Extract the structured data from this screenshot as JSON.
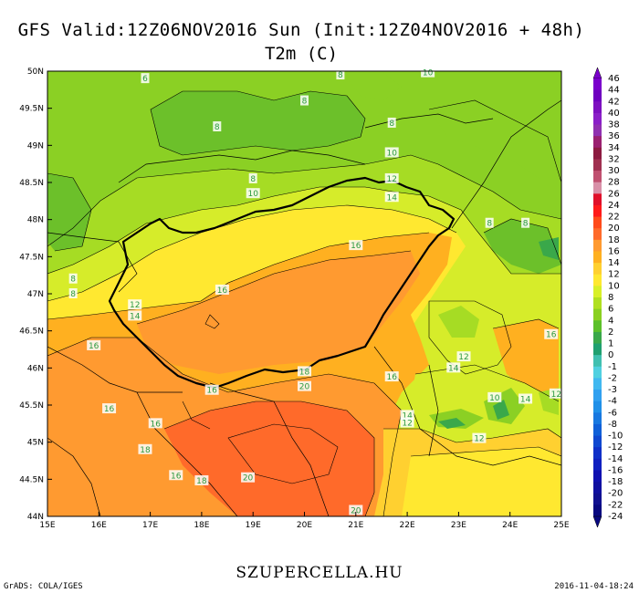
{
  "title": {
    "line1": "GFS Valid:12Z06NOV2016 Sun (Init:12Z04NOV2016 + 48h)",
    "line2": "T2m (C)"
  },
  "footer": {
    "site": "SZUPERCELLA.HU",
    "credit": "GrADS: COLA/IGES",
    "timestamp": "2016-11-04-18:24"
  },
  "map": {
    "region": "Hungary and Carpathian Basin",
    "variable": "2m temperature (C)",
    "lon_range": [
      15,
      25
    ],
    "lat_range": [
      44,
      50
    ],
    "x_ticks": [
      "15E",
      "16E",
      "17E",
      "18E",
      "19E",
      "20E",
      "21E",
      "22E",
      "23E",
      "24E",
      "25E"
    ],
    "y_ticks": [
      "44N",
      "44.5N",
      "45N",
      "45.5N",
      "46N",
      "46.5N",
      "47N",
      "47.5N",
      "48N",
      "48.5N",
      "49N",
      "49.5N",
      "50N"
    ],
    "contour_labels": [
      {
        "text": "6",
        "lon": 16.9,
        "lat": 49.9
      },
      {
        "text": "8",
        "lon": 20.7,
        "lat": 49.95
      },
      {
        "text": "10",
        "lon": 22.4,
        "lat": 49.98
      },
      {
        "text": "8",
        "lon": 20.0,
        "lat": 49.6
      },
      {
        "text": "8",
        "lon": 18.3,
        "lat": 49.25
      },
      {
        "text": "8",
        "lon": 21.7,
        "lat": 49.3
      },
      {
        "text": "10",
        "lon": 21.7,
        "lat": 48.9
      },
      {
        "text": "8",
        "lon": 19.0,
        "lat": 48.55
      },
      {
        "text": "10",
        "lon": 19.0,
        "lat": 48.35
      },
      {
        "text": "12",
        "lon": 21.7,
        "lat": 48.55
      },
      {
        "text": "14",
        "lon": 21.7,
        "lat": 48.3
      },
      {
        "text": "8",
        "lon": 23.6,
        "lat": 47.95
      },
      {
        "text": "8",
        "lon": 24.3,
        "lat": 47.95
      },
      {
        "text": "16",
        "lon": 21.0,
        "lat": 47.65
      },
      {
        "text": "8",
        "lon": 15.5,
        "lat": 47.2
      },
      {
        "text": "8",
        "lon": 15.5,
        "lat": 47.0
      },
      {
        "text": "16",
        "lon": 18.4,
        "lat": 47.05
      },
      {
        "text": "12",
        "lon": 16.7,
        "lat": 46.85
      },
      {
        "text": "14",
        "lon": 16.7,
        "lat": 46.7
      },
      {
        "text": "16",
        "lon": 24.8,
        "lat": 46.45
      },
      {
        "text": "16",
        "lon": 15.9,
        "lat": 46.3
      },
      {
        "text": "12",
        "lon": 23.1,
        "lat": 46.15
      },
      {
        "text": "14",
        "lon": 22.9,
        "lat": 46.0
      },
      {
        "text": "18",
        "lon": 20.0,
        "lat": 45.95
      },
      {
        "text": "16",
        "lon": 21.7,
        "lat": 45.88
      },
      {
        "text": "20",
        "lon": 20.0,
        "lat": 45.75
      },
      {
        "text": "16",
        "lon": 18.2,
        "lat": 45.7
      },
      {
        "text": "10",
        "lon": 23.7,
        "lat": 45.6
      },
      {
        "text": "14",
        "lon": 24.3,
        "lat": 45.58
      },
      {
        "text": "12",
        "lon": 24.9,
        "lat": 45.65
      },
      {
        "text": "16",
        "lon": 16.2,
        "lat": 45.45
      },
      {
        "text": "14",
        "lon": 22.0,
        "lat": 45.36
      },
      {
        "text": "12",
        "lon": 22.0,
        "lat": 45.26
      },
      {
        "text": "16",
        "lon": 17.1,
        "lat": 45.25
      },
      {
        "text": "12",
        "lon": 23.4,
        "lat": 45.05
      },
      {
        "text": "18",
        "lon": 16.9,
        "lat": 44.9
      },
      {
        "text": "16",
        "lon": 17.5,
        "lat": 44.55
      },
      {
        "text": "18",
        "lon": 18.0,
        "lat": 44.48
      },
      {
        "text": "20",
        "lon": 18.9,
        "lat": 44.52
      },
      {
        "text": "20",
        "lon": 21.0,
        "lat": 44.08
      }
    ]
  },
  "colorbar": {
    "levels": [
      "46",
      "44",
      "42",
      "40",
      "38",
      "36",
      "34",
      "32",
      "30",
      "28",
      "26",
      "24",
      "22",
      "20",
      "18",
      "16",
      "14",
      "12",
      "10",
      "8",
      "6",
      "4",
      "2",
      "1",
      "0",
      "-1",
      "-2",
      "-3",
      "-4",
      "-6",
      "-8",
      "-10",
      "-12",
      "-14",
      "-16",
      "-18",
      "-20",
      "-22",
      "-24"
    ],
    "colors": [
      "#7a00cc",
      "#6e00bf",
      "#7d10c0",
      "#8a1fc8",
      "#9030b0",
      "#9a2070",
      "#8c1a40",
      "#a03050",
      "#c05070",
      "#d890a8",
      "#e0102a",
      "#ff1a1a",
      "#ff4a1a",
      "#ff6a2a",
      "#ff9a30",
      "#ffb020",
      "#ffd030",
      "#ffe830",
      "#d8f028",
      "#b0e020",
      "#8ad020",
      "#5cc02a",
      "#3aa84a",
      "#20a070",
      "#40c0b0",
      "#50d0e0",
      "#40b8f0",
      "#30a0f0",
      "#2090e8",
      "#1878e0",
      "#1060d8",
      "#1048d0",
      "#1030c8",
      "#1020c0",
      "#1010b0",
      "#1010a0",
      "#101090",
      "#080880"
    ]
  }
}
